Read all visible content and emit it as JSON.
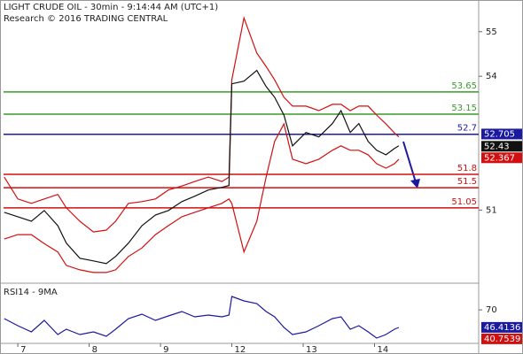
{
  "chart_data": [
    {
      "type": "line",
      "title": "LIGHT CRUDE OIL - 30min - 9:14:44 AM (UTC+1)",
      "subtitle": "Research © 2016 TRADING CENTRAL",
      "xlim": [
        -0.25,
        6.46
      ],
      "x": [
        -0.19,
        0,
        0.19,
        0.37,
        0.56,
        0.68,
        0.87,
        1.06,
        1.24,
        1.37,
        1.55,
        1.74,
        1.93,
        2.11,
        2.3,
        2.48,
        2.67,
        2.86,
        2.96,
        3.0,
        3.17,
        3.35,
        3.48,
        3.6,
        3.73,
        3.85,
        4.04,
        4.22,
        4.41,
        4.53,
        4.66,
        4.78,
        4.91,
        5.03,
        5.16,
        5.28,
        5.34
      ],
      "series": [
        {
          "color": "#d01010",
          "values": [
            51.74,
            51.25,
            51.15,
            51.25,
            51.35,
            51.05,
            50.75,
            50.51,
            50.55,
            50.75,
            51.15,
            51.19,
            51.25,
            51.45,
            51.54,
            51.64,
            51.74,
            51.64,
            51.74,
            53.92,
            55.31,
            54.52,
            54.22,
            53.92,
            53.53,
            53.33,
            53.33,
            53.23,
            53.37,
            53.37,
            53.23,
            53.33,
            53.33,
            53.13,
            52.93,
            52.73,
            52.64
          ]
        },
        {
          "color": "#d01010",
          "values": [
            50.35,
            50.45,
            50.45,
            50.25,
            50.06,
            49.76,
            49.66,
            49.6,
            49.6,
            49.66,
            49.96,
            50.15,
            50.45,
            50.65,
            50.85,
            50.95,
            51.05,
            51.15,
            51.25,
            51.15,
            50.06,
            50.75,
            51.74,
            52.54,
            52.93,
            52.14,
            52.04,
            52.14,
            52.34,
            52.44,
            52.34,
            52.34,
            52.24,
            52.04,
            51.94,
            52.04,
            52.14
          ]
        },
        {
          "color": "#111111",
          "values": [
            50.95,
            50.85,
            50.75,
            50.99,
            50.65,
            50.26,
            49.92,
            49.86,
            49.8,
            49.96,
            50.26,
            50.65,
            50.89,
            50.99,
            51.19,
            51.31,
            51.45,
            51.51,
            51.55,
            53.83,
            53.89,
            54.13,
            53.77,
            53.53,
            53.13,
            52.44,
            52.74,
            52.64,
            52.94,
            53.23,
            52.74,
            52.94,
            52.54,
            52.34,
            52.24,
            52.38,
            52.44
          ]
        }
      ],
      "ylim": [
        49.4,
        55.71
      ],
      "yticks": [
        51,
        54,
        55
      ],
      "levels": [
        {
          "value": 53.65,
          "label": "53.65",
          "color": "#3a9a2a"
        },
        {
          "value": 53.15,
          "label": "53.15",
          "color": "#3a9a2a"
        },
        {
          "value": 52.7,
          "label": "52.7",
          "color": "#1a1aa0"
        },
        {
          "value": 51.8,
          "label": "51.8",
          "color": "#d01010"
        },
        {
          "value": 51.5,
          "label": "51.5",
          "color": "#d01010"
        },
        {
          "value": 51.05,
          "label": "51.05",
          "color": "#d01010"
        }
      ],
      "price_labels": [
        {
          "value": 52.705,
          "label": "52.705",
          "color": "#1a1aa0"
        },
        {
          "value": 52.43,
          "label": "52.43",
          "color": "#111111"
        },
        {
          "value": 52.367,
          "label": "52.367",
          "color": "#d01010"
        }
      ]
    },
    {
      "type": "line",
      "title": "RSI14 - 9MA",
      "xlim": [
        -0.25,
        6.46
      ],
      "x": [
        -0.19,
        0,
        0.19,
        0.37,
        0.56,
        0.68,
        0.87,
        1.06,
        1.24,
        1.37,
        1.55,
        1.74,
        1.93,
        2.11,
        2.3,
        2.48,
        2.67,
        2.86,
        2.96,
        3.0,
        3.17,
        3.35,
        3.48,
        3.6,
        3.73,
        3.85,
        4.04,
        4.22,
        4.41,
        4.53,
        4.66,
        4.78,
        4.91,
        5.03,
        5.16,
        5.28,
        5.34
      ],
      "series": [
        {
          "color": "#1a1aa0",
          "values": [
            58.2,
            48.7,
            40.3,
            55.8,
            36.7,
            43.9,
            36.7,
            40.3,
            34.3,
            43.9,
            58.2,
            64.2,
            55.8,
            61.8,
            67.8,
            60.6,
            63,
            60.6,
            63,
            88.1,
            82.1,
            78.5,
            67.8,
            60.6,
            46.3,
            36.7,
            40.3,
            48.7,
            58.2,
            60.6,
            43.9,
            48.7,
            40.3,
            31.9,
            36.7,
            43.9,
            46.3
          ]
        }
      ],
      "ylim": [
        20,
        100
      ],
      "yticks": [
        70
      ],
      "xticks": [
        {
          "value": 0,
          "label": "7"
        },
        {
          "value": 1,
          "label": "8"
        },
        {
          "value": 2,
          "label": "9"
        },
        {
          "value": 3,
          "label": "12"
        },
        {
          "value": 4,
          "label": "13"
        },
        {
          "value": 5,
          "label": "14"
        }
      ],
      "price_labels": [
        {
          "value": 46.4136,
          "label": "46.4136",
          "color": "#1a1aa0"
        },
        {
          "value": 40.7539,
          "label": "40.7539",
          "color": "#d01010"
        }
      ]
    }
  ]
}
